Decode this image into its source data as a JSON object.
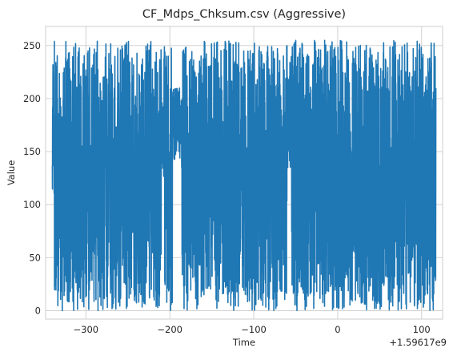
{
  "chart_data": {
    "type": "line",
    "title": "CF_Mdps_Chksum.csv (Aggressive)",
    "xlabel": "Time",
    "ylabel": "Value",
    "x_offset_label": "+1.59617e9",
    "xlim": [
      -348,
      125
    ],
    "ylim": [
      -8,
      268
    ],
    "x_ticks": [
      {
        "value": -300,
        "label": "−300"
      },
      {
        "value": -200,
        "label": "−200"
      },
      {
        "value": -100,
        "label": "−100"
      },
      {
        "value": 0,
        "label": "0"
      },
      {
        "value": 100,
        "label": "100"
      }
    ],
    "y_ticks": [
      {
        "value": 0,
        "label": "0"
      },
      {
        "value": 50,
        "label": "50"
      },
      {
        "value": 100,
        "label": "100"
      },
      {
        "value": 150,
        "label": "150"
      },
      {
        "value": 200,
        "label": "200"
      },
      {
        "value": 250,
        "label": "250"
      }
    ],
    "grid": true,
    "series": [
      {
        "color": "#1f77b4",
        "x_start": -340,
        "x_end": 117,
        "value_range": [
          0,
          255
        ],
        "gaps": [
          {
            "x": [
              -210,
              -207
            ],
            "values": [
              120,
              200
            ]
          },
          {
            "x": [
              -197,
              -188
            ],
            "values": [
              140,
              210
            ]
          },
          {
            "x": [
              -191,
              -186
            ],
            "values": [
              155,
              200
            ]
          },
          {
            "x": [
              -60,
              -55
            ],
            "values": [
              130,
              240
            ]
          }
        ]
      }
    ]
  }
}
